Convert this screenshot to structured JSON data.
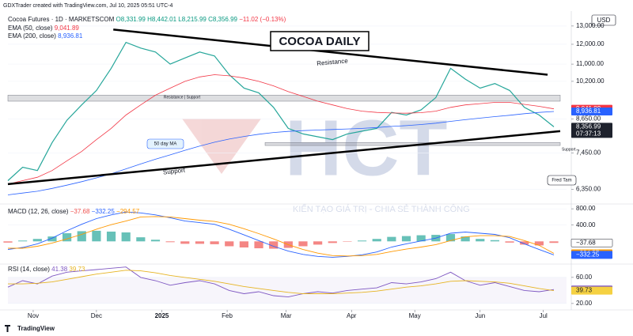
{
  "header": {
    "credit": "GDXTrader created with TradingView.com, Jul 10, 2025 05:51 UTC-4",
    "currency": "USD",
    "brand": "TradingView"
  },
  "watermark": {
    "logo": "HCT",
    "tagline": "KIẾN TẠO GIÁ TRỊ - CHIA SẺ THÀNH CÔNG"
  },
  "chart_data": [
    {
      "type": "line",
      "title": "COCOA DAILY",
      "legend": {
        "symbol": "Cocoa Futures · 1D · MARKETSCOM",
        "o_label": "O",
        "open": "8,331.99",
        "h_label": "H",
        "high": "8,442.01",
        "l_label": "L",
        "low": "8,215.99",
        "c_label": "C",
        "close": "8,356.99",
        "change": "−11.02 (−0.13%)",
        "ema50": "EMA (50, close)",
        "ema50_value": "9,041.89",
        "ema200": "EMA (200, close)",
        "ema200_value": "8,936.81"
      },
      "log_scale": true,
      "xlim": [
        0,
        265
      ],
      "ylim": [
        6000,
        13500
      ],
      "xticks": [
        {
          "value": 12,
          "label": "Nov"
        },
        {
          "value": 42,
          "label": "Dec"
        },
        {
          "value": 73,
          "label": "2025"
        },
        {
          "value": 104,
          "label": "Feb"
        },
        {
          "value": 132,
          "label": "Mar"
        },
        {
          "value": 163,
          "label": "Apr"
        },
        {
          "value": 193,
          "label": "May"
        },
        {
          "value": 224,
          "label": "Jun"
        },
        {
          "value": 254,
          "label": "Jul"
        }
      ],
      "yticks": [
        {
          "value": 13000,
          "label": "13,000.00"
        },
        {
          "value": 12000,
          "label": "12,000.00"
        },
        {
          "value": 11000,
          "label": "11,000.00"
        },
        {
          "value": 10200,
          "label": "10,200.00"
        },
        {
          "value": 8650,
          "label": "8,650.00"
        },
        {
          "value": 7450,
          "label": "7,450.00"
        },
        {
          "value": 6350,
          "label": "6,350.00"
        }
      ],
      "x": [
        0,
        7,
        14,
        21,
        28,
        35,
        42,
        49,
        56,
        63,
        70,
        77,
        84,
        91,
        98,
        105,
        112,
        119,
        126,
        133,
        140,
        147,
        154,
        161,
        168,
        175,
        182,
        189,
        196,
        203,
        210,
        217,
        224,
        231,
        238,
        245,
        252,
        259
      ],
      "series": [
        {
          "name": "Cocoa Futures",
          "color": "#26a69a",
          "values": [
            6600,
            7000,
            6900,
            7800,
            8600,
            9200,
            9800,
            10800,
            12100,
            11800,
            11600,
            11000,
            11300,
            11600,
            11400,
            10500,
            9900,
            9700,
            9100,
            8300,
            8100,
            8000,
            7900,
            8100,
            8200,
            8300,
            8900,
            8800,
            9000,
            9500,
            10800,
            10300,
            9900,
            10100,
            9800,
            9100,
            8800,
            8356.99
          ]
        },
        {
          "name": "EMA (50, close)",
          "color": "#f23645",
          "values": [
            6500,
            6600,
            6700,
            6900,
            7200,
            7500,
            7900,
            8300,
            8800,
            9200,
            9600,
            9900,
            10200,
            10400,
            10500,
            10450,
            10350,
            10200,
            10000,
            9750,
            9550,
            9350,
            9200,
            9050,
            8950,
            8900,
            8880,
            8870,
            8890,
            8950,
            9100,
            9200,
            9250,
            9300,
            9300,
            9220,
            9140,
            9041.89
          ]
        },
        {
          "name": "EMA (200, close)",
          "color": "#2962ff",
          "values": [
            6200,
            6250,
            6300,
            6380,
            6470,
            6570,
            6680,
            6800,
            6950,
            7100,
            7250,
            7390,
            7540,
            7680,
            7810,
            7920,
            8010,
            8090,
            8150,
            8190,
            8220,
            8240,
            8260,
            8280,
            8300,
            8330,
            8370,
            8400,
            8440,
            8490,
            8560,
            8620,
            8680,
            8740,
            8790,
            8850,
            8900,
            8936.81
          ]
        }
      ],
      "trendlines": [
        {
          "label": "Resistance",
          "x": [
            50,
            256
          ],
          "y": [
            12800,
            10500
          ]
        },
        {
          "label": "Support",
          "x": [
            0,
            262
          ],
          "y": [
            6500,
            8200
          ]
        }
      ],
      "zones": [
        {
          "label": "Resistance | Support",
          "x": [
            0,
            262
          ],
          "y": [
            9350,
            9600
          ]
        },
        {
          "label": "Support",
          "x": [
            122,
            262
          ],
          "y": [
            7700,
            7800
          ]
        }
      ],
      "annotations": {
        "ma_label": "50 day MA",
        "author": "Fred Tam"
      },
      "price_tags": [
        {
          "value": 9041.89,
          "label": "9,041.89",
          "color": "#f23645"
        },
        {
          "value": 8936.81,
          "label": "8,936.81",
          "color": "#2962ff"
        },
        {
          "value": 8356.99,
          "label": "8,356.99",
          "color": "#1e222d"
        }
      ],
      "countdown": "07:37:13"
    },
    {
      "type": "macd",
      "legend": {
        "name": "MACD (12, 26, close)",
        "hist": "−37.68",
        "macd": "−332.25",
        "signal": "−294.57"
      },
      "xlim": [
        0,
        265
      ],
      "ylim": [
        -480,
        880
      ],
      "yticks": [
        {
          "value": 800,
          "label": "800.00"
        },
        {
          "value": 400,
          "label": "400.00"
        }
      ],
      "x": [
        0,
        7,
        14,
        21,
        28,
        35,
        42,
        49,
        56,
        63,
        70,
        77,
        84,
        91,
        98,
        105,
        112,
        119,
        126,
        133,
        140,
        147,
        154,
        161,
        168,
        175,
        182,
        189,
        196,
        203,
        210,
        217,
        224,
        231,
        238,
        245,
        252,
        259
      ],
      "histogram": {
        "name": "Histogram",
        "up_color": "#26a69a",
        "down_color": "#ef5350",
        "values": [
          -30,
          20,
          60,
          120,
          200,
          250,
          260,
          240,
          220,
          100,
          40,
          -20,
          -60,
          -60,
          -70,
          -120,
          -150,
          -170,
          -180,
          -160,
          -120,
          -80,
          -40,
          -10,
          20,
          60,
          110,
          130,
          150,
          160,
          180,
          120,
          60,
          30,
          -30,
          -80,
          -100,
          -37.68
        ]
      },
      "series": [
        {
          "name": "MACD",
          "color": "#2962ff",
          "values": [
            -200,
            -150,
            -60,
            80,
            260,
            420,
            560,
            650,
            720,
            700,
            650,
            580,
            500,
            460,
            420,
            300,
            160,
            20,
            -120,
            -240,
            -320,
            -370,
            -390,
            -370,
            -330,
            -260,
            -140,
            -60,
            10,
            80,
            200,
            230,
            200,
            170,
            90,
            -60,
            -200,
            -332.25
          ]
        },
        {
          "name": "Signal",
          "color": "#ff9800",
          "values": [
            -170,
            -170,
            -120,
            -40,
            60,
            170,
            300,
            410,
            500,
            600,
            610,
            600,
            560,
            520,
            490,
            420,
            310,
            190,
            60,
            -80,
            -200,
            -290,
            -350,
            -360,
            -350,
            -320,
            -250,
            -190,
            -140,
            -80,
            20,
            110,
            140,
            140,
            120,
            20,
            -100,
            -294.57
          ]
        }
      ],
      "price_tags": [
        {
          "value": -37.68,
          "label": "−37.68",
          "color": "#ffffff"
        },
        {
          "value": -294.57,
          "label": "−294.57",
          "color": "#ff9800"
        },
        {
          "value": -332.25,
          "label": "−332.25",
          "color": "#2962ff"
        }
      ]
    },
    {
      "type": "rsi",
      "legend": {
        "name": "RSI (14, close)",
        "rsi": "41.38",
        "ma": "39.73"
      },
      "xlim": [
        0,
        265
      ],
      "ylim": [
        15,
        78
      ],
      "yticks": [
        {
          "value": 60,
          "label": "60.00"
        },
        {
          "value": 20,
          "label": "20.00"
        }
      ],
      "x": [
        0,
        7,
        14,
        21,
        28,
        35,
        42,
        49,
        56,
        63,
        70,
        77,
        84,
        91,
        98,
        105,
        112,
        119,
        126,
        133,
        140,
        147,
        154,
        161,
        168,
        175,
        182,
        189,
        196,
        203,
        210,
        217,
        224,
        231,
        238,
        245,
        252,
        259
      ],
      "series": [
        {
          "name": "RSI",
          "color": "#7e57c2",
          "values": [
            45,
            55,
            50,
            62,
            68,
            70,
            72,
            74,
            76,
            60,
            55,
            48,
            52,
            55,
            50,
            40,
            35,
            38,
            32,
            30,
            35,
            38,
            36,
            40,
            42,
            44,
            52,
            50,
            53,
            58,
            68,
            55,
            48,
            52,
            46,
            40,
            38,
            41.38
          ]
        },
        {
          "name": "RSI MA",
          "color": "#e6b422",
          "values": [
            50,
            50,
            51,
            53,
            57,
            61,
            65,
            68,
            71,
            70,
            67,
            63,
            60,
            57,
            54,
            50,
            46,
            43,
            40,
            37,
            35,
            35,
            35,
            36,
            37,
            39,
            42,
            45,
            47,
            50,
            54,
            55,
            54,
            53,
            51,
            47,
            43,
            39.73
          ]
        }
      ],
      "price_tags": [
        {
          "value": 41.38,
          "label": "41.38",
          "color": "#7e57c2"
        },
        {
          "value": 39.73,
          "label": "39.73",
          "color": "#f5d142"
        }
      ]
    }
  ]
}
